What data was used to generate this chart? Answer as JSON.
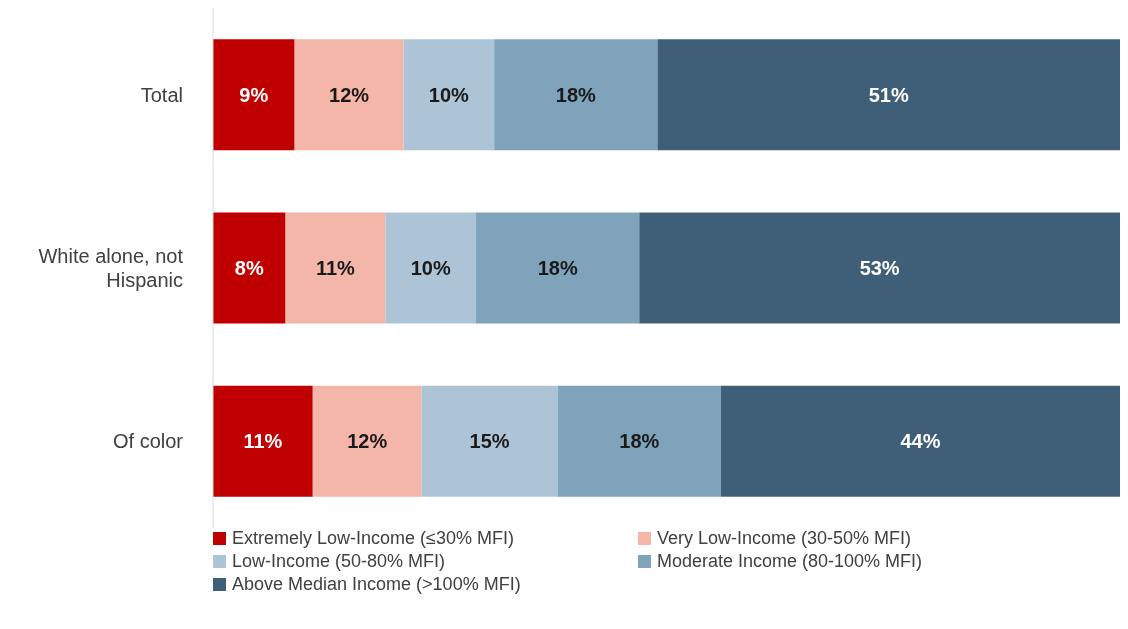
{
  "chart_data": {
    "type": "bar",
    "orientation": "horizontal",
    "stacked": true,
    "categories": [
      "Total",
      "White alone, not Hispanic",
      "Of color"
    ],
    "xlim": [
      0,
      100
    ],
    "tick_labels": "y",
    "data_labels": true,
    "legend": "bottom",
    "series": [
      {
        "name": "Extremely Low-Income (≤30% MFI)",
        "color": "#c00000",
        "values": [
          9,
          8,
          11
        ],
        "value_labels": [
          "9%",
          "8%",
          "11%"
        ]
      },
      {
        "name": "Very Low-Income (30-50% MFI)",
        "color": "#f4b6a8",
        "values": [
          12,
          11,
          12
        ],
        "value_labels": [
          "12%",
          "11%",
          "12%"
        ]
      },
      {
        "name": "Low-Income (50-80% MFI)",
        "color": "#adc4d6",
        "values": [
          10,
          10,
          15
        ],
        "value_labels": [
          "10%",
          "10%",
          "15%"
        ]
      },
      {
        "name": "Moderate Income (80-100% MFI)",
        "color": "#7fa3bb",
        "values": [
          18,
          18,
          18
        ],
        "value_labels": [
          "18%",
          "18%",
          "18%"
        ]
      },
      {
        "name": "Above Median Income (>100% MFI)",
        "color": "#3f5f78",
        "values": [
          51,
          53,
          44
        ],
        "value_labels": [
          "51%",
          "53%",
          "44%"
        ]
      }
    ]
  }
}
